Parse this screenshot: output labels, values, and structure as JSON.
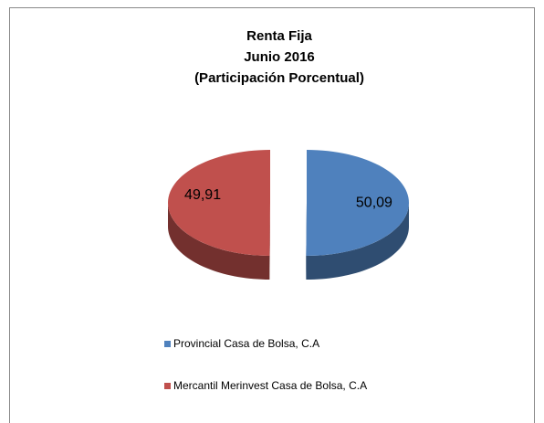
{
  "chart_data": {
    "type": "pie",
    "title": [
      "Renta Fija",
      "Junio 2016",
      "(Participación Porcentual)"
    ],
    "categories": [
      "Provincial Casa de Bolsa, C.A",
      "Mercantil Merinvest Casa de Bolsa, C.A"
    ],
    "values": [
      50.09,
      49.91
    ],
    "value_labels": [
      "50,09",
      "49,91"
    ],
    "colors": [
      "#4f81bd",
      "#c0504d"
    ],
    "legend": "bottom"
  }
}
